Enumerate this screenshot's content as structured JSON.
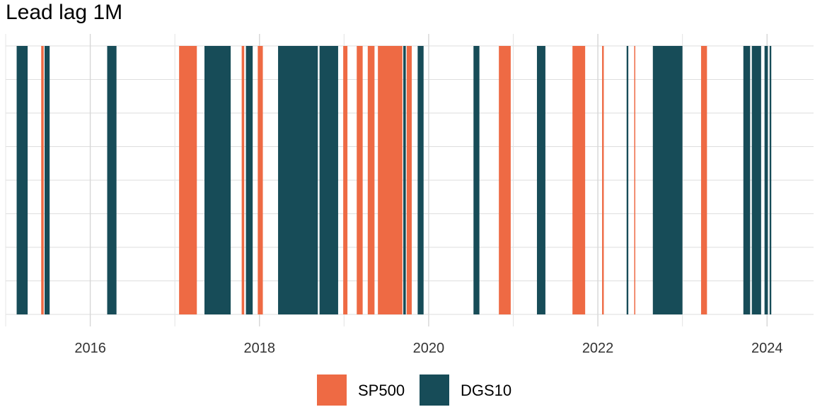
{
  "chart_data": {
    "type": "bar",
    "title": "Lead lag 1M",
    "xlabel": "",
    "ylabel": "",
    "xlim": [
      2015.0,
      2024.55
    ],
    "ylim": [
      0,
      8
    ],
    "grid": true,
    "legend_position": "bottom",
    "x_ticks": [
      {
        "value": 2016,
        "label": "2016"
      },
      {
        "value": 2018,
        "label": "2018"
      },
      {
        "value": 2020,
        "label": "2020"
      },
      {
        "value": 2022,
        "label": "2022"
      },
      {
        "value": 2024,
        "label": "2024"
      }
    ],
    "series": [
      {
        "name": "SP500",
        "color": "#EE6A44",
        "segments": [
          {
            "start": 2015.42,
            "end": 2015.45,
            "value": 8
          },
          {
            "start": 2017.05,
            "end": 2017.26,
            "value": 8
          },
          {
            "start": 2017.79,
            "end": 2017.82,
            "value": 8
          },
          {
            "start": 2017.98,
            "end": 2018.04,
            "value": 8
          },
          {
            "start": 2018.99,
            "end": 2019.04,
            "value": 8
          },
          {
            "start": 2019.15,
            "end": 2019.22,
            "value": 8
          },
          {
            "start": 2019.28,
            "end": 2019.36,
            "value": 8
          },
          {
            "start": 2019.4,
            "end": 2019.69,
            "value": 8
          },
          {
            "start": 2019.74,
            "end": 2019.8,
            "value": 8
          },
          {
            "start": 2020.83,
            "end": 2020.97,
            "value": 8
          },
          {
            "start": 2021.7,
            "end": 2021.85,
            "value": 8
          },
          {
            "start": 2022.05,
            "end": 2022.07,
            "value": 8
          },
          {
            "start": 2022.43,
            "end": 2022.44,
            "value": 8
          },
          {
            "start": 2023.22,
            "end": 2023.29,
            "value": 8
          }
        ]
      },
      {
        "name": "DGS10",
        "color": "#174C58",
        "segments": [
          {
            "start": 2015.13,
            "end": 2015.26,
            "value": 8
          },
          {
            "start": 2015.46,
            "end": 2015.52,
            "value": 8
          },
          {
            "start": 2016.2,
            "end": 2016.31,
            "value": 8
          },
          {
            "start": 2017.35,
            "end": 2017.66,
            "value": 8
          },
          {
            "start": 2017.84,
            "end": 2017.92,
            "value": 8
          },
          {
            "start": 2018.22,
            "end": 2018.69,
            "value": 8
          },
          {
            "start": 2018.71,
            "end": 2018.93,
            "value": 8
          },
          {
            "start": 2019.7,
            "end": 2019.73,
            "value": 8
          },
          {
            "start": 2019.87,
            "end": 2019.94,
            "value": 8
          },
          {
            "start": 2020.53,
            "end": 2020.6,
            "value": 8
          },
          {
            "start": 2021.28,
            "end": 2021.38,
            "value": 8
          },
          {
            "start": 2022.34,
            "end": 2022.36,
            "value": 8
          },
          {
            "start": 2022.65,
            "end": 2023.0,
            "value": 8
          },
          {
            "start": 2023.72,
            "end": 2023.8,
            "value": 8
          },
          {
            "start": 2023.82,
            "end": 2023.93,
            "value": 8
          },
          {
            "start": 2023.97,
            "end": 2024.01,
            "value": 8
          },
          {
            "start": 2024.03,
            "end": 2024.05,
            "value": 8
          }
        ]
      }
    ]
  }
}
